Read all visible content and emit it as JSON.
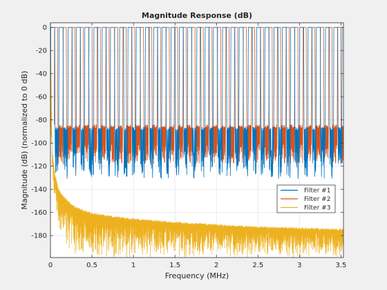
{
  "chart_data": {
    "type": "line",
    "title": "Magnitude Response (dB)",
    "xlabel": "Frequency (MHz)",
    "ylabel": "Magnitude (dB) (normalized to 0 dB)",
    "xlim": [
      0,
      3.53
    ],
    "ylim": [
      -199,
      4
    ],
    "xticks": [
      0,
      0.5,
      1,
      1.5,
      2,
      2.5,
      3,
      3.5
    ],
    "xtick_labels": [
      "0",
      "0.5",
      "1",
      "1.5",
      "2",
      "2.5",
      "3",
      "3.5"
    ],
    "yticks": [
      0,
      -20,
      -40,
      -60,
      -80,
      -100,
      -120,
      -140,
      -160,
      -180
    ],
    "ytick_labels": [
      "0",
      "-20",
      "-40",
      "-60",
      "-80",
      "-100",
      "-120",
      "-140",
      "-160",
      "-180"
    ],
    "grid": true,
    "legend_position": "lower-right",
    "series": [
      {
        "name": "Filter #1",
        "color": "#0072bd",
        "passband_db": 0,
        "stopband_db_range": [
          -123,
          -86
        ],
        "passband_starts_mhz": [
          0.0,
          0.1,
          0.21,
          0.31,
          0.41,
          0.52,
          0.62,
          0.72,
          0.83,
          0.93,
          1.03,
          1.14,
          1.24,
          1.34,
          1.45,
          1.55,
          1.65,
          1.76,
          1.86,
          1.96,
          2.07,
          2.17,
          2.27,
          2.38,
          2.48,
          2.58,
          2.69,
          2.79,
          2.89,
          3.0,
          3.1,
          3.2,
          3.31,
          3.41,
          3.51
        ],
        "passband_width_mhz": 0.055
      },
      {
        "name": "Filter #2",
        "color": "#d95319",
        "passband_db": 0,
        "stopband_db_range": [
          -118,
          -84
        ],
        "passband_starts_mhz": [
          0.045,
          0.15,
          0.255,
          0.355,
          0.46,
          0.56,
          0.665,
          0.77,
          0.87,
          0.975,
          1.08,
          1.18,
          1.285,
          1.39,
          1.49,
          1.595,
          1.7,
          1.8,
          1.905,
          2.01,
          2.11,
          2.215,
          2.32,
          2.42,
          2.525,
          2.63,
          2.73,
          2.835,
          2.94,
          3.04,
          3.145,
          3.25,
          3.35,
          3.455
        ],
        "passband_width_mhz": 0.045
      },
      {
        "name": "Filter #3",
        "color": "#edb120",
        "x": [
          0,
          0.02,
          0.05,
          0.1,
          0.2,
          0.3,
          0.5,
          0.75,
          1.0,
          1.5,
          2.0,
          2.5,
          3.0,
          3.5
        ],
        "upper_envelope_db": [
          0,
          -105,
          -125,
          -140,
          -149,
          -155,
          -160,
          -163,
          -165,
          -168,
          -170,
          -172,
          -173,
          -174
        ],
        "lower_envelope_db": [
          0,
          -140,
          -160,
          -175,
          -190,
          -199,
          -199,
          -199,
          -199,
          -199,
          -199,
          -199,
          -199,
          -199
        ]
      }
    ]
  }
}
